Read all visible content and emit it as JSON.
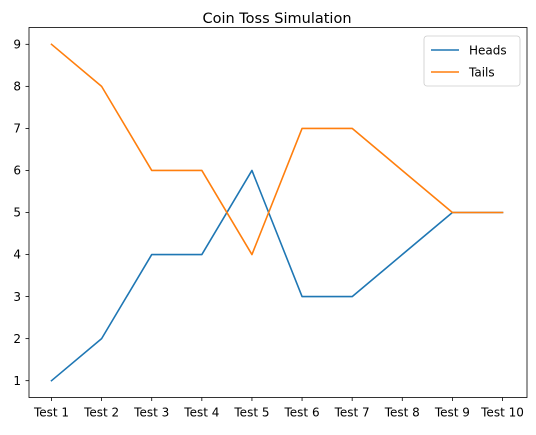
{
  "chart_data": {
    "type": "line",
    "title": "Coin Toss Simulation",
    "xlabel": "",
    "ylabel": "",
    "categories": [
      "Test 1",
      "Test 2",
      "Test 3",
      "Test 4",
      "Test 5",
      "Test 6",
      "Test 7",
      "Test 8",
      "Test 9",
      "Test 10"
    ],
    "series": [
      {
        "name": "Heads",
        "color": "#1f77b4",
        "values": [
          1,
          2,
          4,
          4,
          6,
          3,
          3,
          4,
          5,
          5
        ]
      },
      {
        "name": "Tails",
        "color": "#ff7f0e",
        "values": [
          9,
          8,
          6,
          6,
          4,
          7,
          7,
          6,
          5,
          5
        ]
      }
    ],
    "yticks": [
      1,
      2,
      3,
      4,
      5,
      6,
      7,
      8,
      9
    ],
    "ylim": [
      0.6,
      9.4
    ],
    "grid": false,
    "legend_position": "top-right"
  }
}
